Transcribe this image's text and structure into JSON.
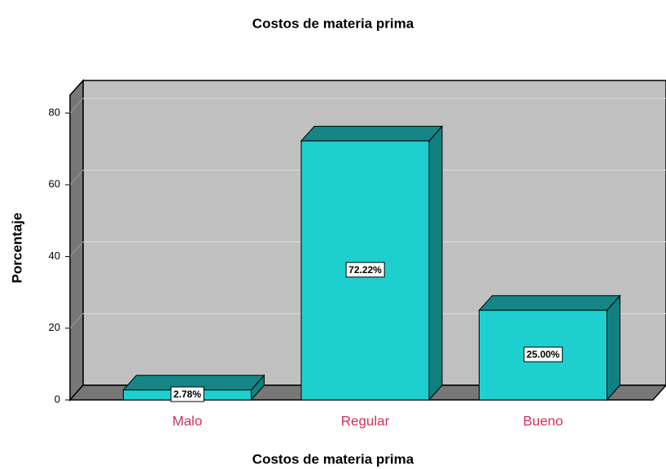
{
  "chart_data": {
    "type": "bar3d",
    "title": "Costos de materia prima",
    "x_label": "Costos de materia prima",
    "y_label": "Porcentaje",
    "categories": [
      "Malo",
      "Regular",
      "Bueno"
    ],
    "values": [
      2.78,
      72.22,
      25.0
    ],
    "value_labels": [
      "2.78%",
      "72.22%",
      "25.00%"
    ],
    "color": "#1ecfcf",
    "ylim": [
      0,
      85
    ],
    "yticks": [
      0,
      20,
      40,
      60,
      80
    ],
    "grid": true
  }
}
